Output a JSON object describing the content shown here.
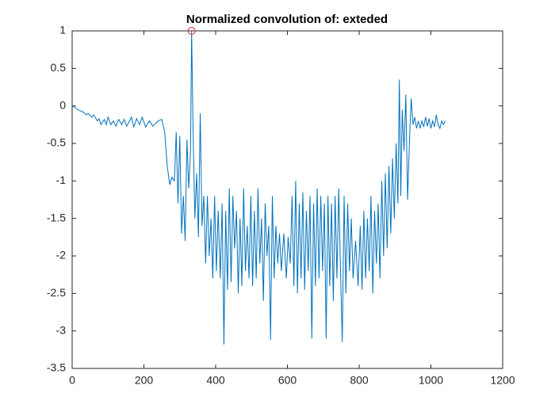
{
  "chart_data": {
    "type": "line",
    "title": "Normalized convolution of: exteded",
    "xlim": [
      0,
      1200
    ],
    "xticks": [
      0,
      200,
      400,
      600,
      800,
      1000,
      1200
    ],
    "ylim": [
      -3.5,
      1
    ],
    "yticks": [
      -3.5,
      -3,
      -2.5,
      -2,
      -1.5,
      -1,
      -0.5,
      0,
      0.5,
      1
    ],
    "series": [
      {
        "color": "#0072bd",
        "x": [
          0,
          10,
          20,
          30,
          40,
          45,
          55,
          60,
          70,
          75,
          80,
          90,
          95,
          100,
          108,
          115,
          122,
          130,
          138,
          145,
          152,
          160,
          165,
          172,
          180,
          188,
          195,
          205,
          215,
          225,
          240,
          250,
          258,
          265,
          272,
          278,
          285,
          290,
          295,
          300,
          305,
          310,
          315,
          320,
          325,
          330,
          333,
          337,
          342,
          347,
          352,
          357,
          362,
          367,
          372,
          377,
          382,
          387,
          392,
          397,
          402,
          407,
          413,
          418,
          423,
          428,
          433,
          438,
          443,
          448,
          453,
          458,
          463,
          468,
          473,
          478,
          483,
          488,
          493,
          498,
          503,
          508,
          513,
          518,
          523,
          528,
          533,
          538,
          543,
          548,
          553,
          558,
          563,
          568,
          573,
          578,
          583,
          590,
          597,
          602,
          608,
          613,
          618,
          623,
          628,
          633,
          638,
          643,
          648,
          653,
          658,
          663,
          668,
          673,
          678,
          683,
          688,
          693,
          698,
          703,
          708,
          713,
          718,
          723,
          728,
          733,
          738,
          743,
          748,
          753,
          758,
          763,
          768,
          773,
          778,
          783,
          790,
          797,
          803,
          808,
          813,
          818,
          823,
          828,
          833,
          838,
          843,
          848,
          853,
          858,
          863,
          868,
          873,
          878,
          883,
          888,
          893,
          898,
          903,
          908,
          912,
          916,
          920,
          925,
          930,
          935,
          940,
          945,
          950,
          955,
          960,
          965,
          970,
          975,
          980,
          985,
          990,
          995,
          1000,
          1005,
          1010,
          1015,
          1020,
          1025,
          1030,
          1035,
          1040
        ],
        "values": [
          0,
          -0.03,
          -0.06,
          -0.08,
          -0.12,
          -0.1,
          -0.15,
          -0.12,
          -0.2,
          -0.17,
          -0.25,
          -0.18,
          -0.25,
          -0.15,
          -0.25,
          -0.2,
          -0.27,
          -0.18,
          -0.25,
          -0.18,
          -0.27,
          -0.2,
          -0.15,
          -0.28,
          -0.17,
          -0.25,
          -0.15,
          -0.28,
          -0.2,
          -0.27,
          -0.2,
          -0.18,
          -0.35,
          -0.8,
          -1.05,
          -0.95,
          -1.0,
          -0.35,
          -1.3,
          -0.4,
          -1.7,
          -1.2,
          -1.8,
          -0.45,
          -1.1,
          -0.6,
          1,
          -0.3,
          -1.5,
          -0.9,
          -1.75,
          -0.1,
          -1.6,
          -1.2,
          -2.1,
          -1.2,
          -2.0,
          -1.5,
          -2.3,
          -1.2,
          -2.2,
          -1.4,
          -2.3,
          -1.3,
          -3.18,
          -1.4,
          -2.45,
          -1.1,
          -2.35,
          -1.2,
          -1.9,
          -1.4,
          -2.5,
          -1.5,
          -2.4,
          -1.1,
          -2.2,
          -1.6,
          -2.3,
          -1.2,
          -2.4,
          -1.4,
          -2.3,
          -1.1,
          -2.1,
          -1.5,
          -2.6,
          -1.3,
          -2.0,
          -1.6,
          -3.12,
          -1.2,
          -2.3,
          -1.6,
          -2.1,
          -1.7,
          -2.2,
          -1.7,
          -2.3,
          -1.75,
          -2.1,
          -1.2,
          -2.4,
          -1.0,
          -2.5,
          -1.3,
          -2.3,
          -1.15,
          -2.45,
          -1.4,
          -2.2,
          -1.2,
          -3.1,
          -1.3,
          -2.4,
          -1.1,
          -2.3,
          -1.2,
          -2.2,
          -1.3,
          -3.1,
          -1.2,
          -2.4,
          -1.3,
          -2.6,
          -1.2,
          -2.3,
          -1.1,
          -2.2,
          -3.15,
          -1.2,
          -2.5,
          -1.3,
          -2.2,
          -1.5,
          -2.3,
          -1.8,
          -2.4,
          -1.6,
          -2.45,
          -1.4,
          -2.3,
          -1.5,
          -2.2,
          -1.2,
          -2.5,
          -1.4,
          -2.1,
          -1.3,
          -2.3,
          -1.0,
          -2.0,
          -0.9,
          -1.9,
          -0.8,
          -1.7,
          -0.7,
          -1.5,
          -0.5,
          -1.3,
          0.35,
          -1.2,
          -0.05,
          -0.6,
          0.15,
          -1.25,
          -0.5,
          0.1,
          -0.25,
          -0.15,
          -0.3,
          -0.2,
          -0.3,
          -0.2,
          -0.28,
          -0.15,
          -0.27,
          -0.17,
          -0.3,
          -0.2,
          -0.28,
          -0.12,
          -0.25,
          -0.3,
          -0.2,
          -0.25,
          -0.2
        ]
      }
    ],
    "marker": {
      "x": 333,
      "y": 1,
      "color": "#e02020"
    }
  }
}
